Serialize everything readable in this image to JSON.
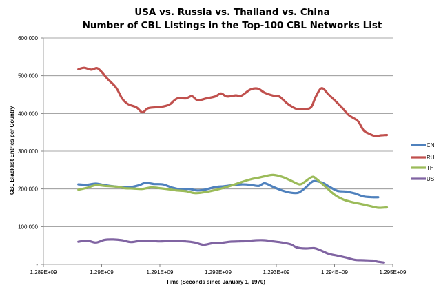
{
  "chart_data": {
    "type": "line",
    "title": "USA vs. Russia vs. Thailand vs. China",
    "subtitle": "Number of CBL Listings in the Top-100 CBL Networks List",
    "xlabel": "Time (Seconds since January 1, 1970)",
    "ylabel": "CBL Blacklist Entries per Country",
    "xlim": [
      1289000000,
      1295000000
    ],
    "ylim": [
      0,
      600000
    ],
    "x_tick_labels": [
      "1.289E+09",
      "1.29E+09",
      "1.291E+09",
      "1.292E+09",
      "1.293E+09",
      "1.294E+09",
      "1.295E+09"
    ],
    "y_tick_labels": [
      "-",
      "100,000",
      "200,000",
      "300,000",
      "400,000",
      "500,000",
      "600,000"
    ],
    "grid": "horizontal",
    "legend_position": "right",
    "series": [
      {
        "name": "CN",
        "color": "#4f81bd",
        "points": [
          [
            1289600000,
            212000
          ],
          [
            1289750000,
            211000
          ],
          [
            1289900000,
            214000
          ],
          [
            1290050000,
            210000
          ],
          [
            1290200000,
            207000
          ],
          [
            1290350000,
            205000
          ],
          [
            1290500000,
            205000
          ],
          [
            1290650000,
            210000
          ],
          [
            1290750000,
            216000
          ],
          [
            1290900000,
            213000
          ],
          [
            1291050000,
            212000
          ],
          [
            1291200000,
            204000
          ],
          [
            1291350000,
            199000
          ],
          [
            1291500000,
            200000
          ],
          [
            1291650000,
            196000
          ],
          [
            1291800000,
            199000
          ],
          [
            1291950000,
            205000
          ],
          [
            1292100000,
            207000
          ],
          [
            1292250000,
            210000
          ],
          [
            1292400000,
            212000
          ],
          [
            1292550000,
            211000
          ],
          [
            1292700000,
            208000
          ],
          [
            1292800000,
            215000
          ],
          [
            1292950000,
            205000
          ],
          [
            1293100000,
            196000
          ],
          [
            1293250000,
            190000
          ],
          [
            1293380000,
            190000
          ],
          [
            1293500000,
            203000
          ],
          [
            1293630000,
            220000
          ],
          [
            1293780000,
            217000
          ],
          [
            1293920000,
            205000
          ],
          [
            1294050000,
            195000
          ],
          [
            1294200000,
            193000
          ],
          [
            1294350000,
            188000
          ],
          [
            1294500000,
            180000
          ],
          [
            1294650000,
            178000
          ],
          [
            1294750000,
            178000
          ]
        ]
      },
      {
        "name": "RU",
        "color": "#c0504d",
        "points": [
          [
            1289600000,
            517000
          ],
          [
            1289700000,
            521000
          ],
          [
            1289820000,
            516000
          ],
          [
            1289920000,
            520000
          ],
          [
            1290000000,
            510000
          ],
          [
            1290100000,
            492000
          ],
          [
            1290250000,
            468000
          ],
          [
            1290350000,
            440000
          ],
          [
            1290450000,
            425000
          ],
          [
            1290600000,
            416000
          ],
          [
            1290700000,
            403000
          ],
          [
            1290800000,
            414000
          ],
          [
            1291000000,
            417000
          ],
          [
            1291100000,
            420000
          ],
          [
            1291180000,
            425000
          ],
          [
            1291300000,
            440000
          ],
          [
            1291450000,
            440000
          ],
          [
            1291550000,
            446000
          ],
          [
            1291650000,
            435000
          ],
          [
            1291800000,
            440000
          ],
          [
            1291950000,
            445000
          ],
          [
            1292050000,
            453000
          ],
          [
            1292150000,
            445000
          ],
          [
            1292300000,
            448000
          ],
          [
            1292400000,
            447000
          ],
          [
            1292550000,
            463000
          ],
          [
            1292680000,
            466000
          ],
          [
            1292800000,
            455000
          ],
          [
            1292950000,
            447000
          ],
          [
            1293050000,
            445000
          ],
          [
            1293200000,
            425000
          ],
          [
            1293350000,
            412000
          ],
          [
            1293500000,
            412000
          ],
          [
            1293600000,
            417000
          ],
          [
            1293680000,
            445000
          ],
          [
            1293780000,
            467000
          ],
          [
            1293900000,
            450000
          ],
          [
            1294100000,
            420000
          ],
          [
            1294250000,
            395000
          ],
          [
            1294400000,
            380000
          ],
          [
            1294500000,
            355000
          ],
          [
            1294600000,
            346000
          ],
          [
            1294700000,
            340000
          ],
          [
            1294800000,
            342000
          ],
          [
            1294900000,
            343000
          ]
        ]
      },
      {
        "name": "TH",
        "color": "#9bbb59",
        "points": [
          [
            1289600000,
            198000
          ],
          [
            1289750000,
            203000
          ],
          [
            1289900000,
            210000
          ],
          [
            1290050000,
            208000
          ],
          [
            1290250000,
            206000
          ],
          [
            1290400000,
            202000
          ],
          [
            1290550000,
            201000
          ],
          [
            1290700000,
            200000
          ],
          [
            1290850000,
            204000
          ],
          [
            1291000000,
            202000
          ],
          [
            1291150000,
            199000
          ],
          [
            1291300000,
            196000
          ],
          [
            1291450000,
            194000
          ],
          [
            1291600000,
            189000
          ],
          [
            1291750000,
            191000
          ],
          [
            1291950000,
            197000
          ],
          [
            1292100000,
            203000
          ],
          [
            1292250000,
            210000
          ],
          [
            1292400000,
            218000
          ],
          [
            1292550000,
            225000
          ],
          [
            1292700000,
            230000
          ],
          [
            1292850000,
            235000
          ],
          [
            1292950000,
            237000
          ],
          [
            1293100000,
            232000
          ],
          [
            1293250000,
            222000
          ],
          [
            1293400000,
            212000
          ],
          [
            1293500000,
            220000
          ],
          [
            1293620000,
            232000
          ],
          [
            1293700000,
            225000
          ],
          [
            1293850000,
            205000
          ],
          [
            1294000000,
            185000
          ],
          [
            1294150000,
            172000
          ],
          [
            1294300000,
            165000
          ],
          [
            1294450000,
            160000
          ],
          [
            1294600000,
            155000
          ],
          [
            1294750000,
            150000
          ],
          [
            1294900000,
            151000
          ]
        ]
      },
      {
        "name": "US",
        "color": "#8064a2",
        "points": [
          [
            1289600000,
            60000
          ],
          [
            1289750000,
            63000
          ],
          [
            1289900000,
            58000
          ],
          [
            1290050000,
            65000
          ],
          [
            1290200000,
            66000
          ],
          [
            1290350000,
            64000
          ],
          [
            1290500000,
            59000
          ],
          [
            1290650000,
            62000
          ],
          [
            1290850000,
            62000
          ],
          [
            1291000000,
            61000
          ],
          [
            1291150000,
            62000
          ],
          [
            1291300000,
            62000
          ],
          [
            1291450000,
            61000
          ],
          [
            1291600000,
            58000
          ],
          [
            1291750000,
            52000
          ],
          [
            1291900000,
            56000
          ],
          [
            1292050000,
            57000
          ],
          [
            1292200000,
            60000
          ],
          [
            1292350000,
            61000
          ],
          [
            1292500000,
            62000
          ],
          [
            1292650000,
            64000
          ],
          [
            1292800000,
            64000
          ],
          [
            1292950000,
            61000
          ],
          [
            1293100000,
            58000
          ],
          [
            1293250000,
            53000
          ],
          [
            1293350000,
            45000
          ],
          [
            1293500000,
            42000
          ],
          [
            1293650000,
            43000
          ],
          [
            1293750000,
            38000
          ],
          [
            1293900000,
            28000
          ],
          [
            1294050000,
            23000
          ],
          [
            1294200000,
            18000
          ],
          [
            1294350000,
            12000
          ],
          [
            1294500000,
            11000
          ],
          [
            1294650000,
            10000
          ],
          [
            1294750000,
            7000
          ],
          [
            1294850000,
            5000
          ]
        ]
      }
    ]
  }
}
